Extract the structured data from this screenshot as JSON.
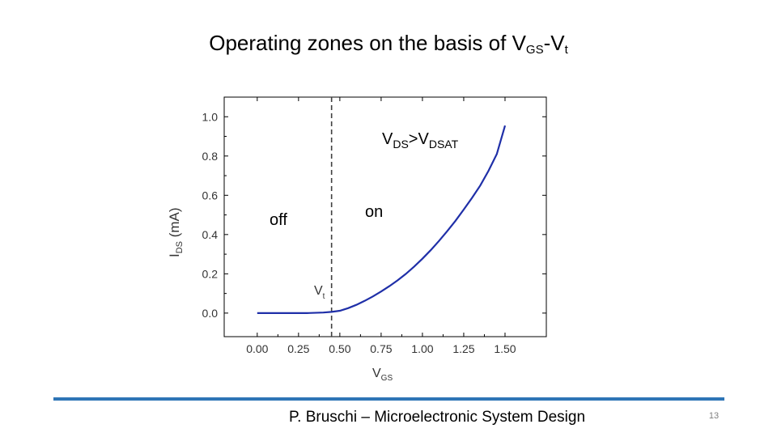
{
  "slide": {
    "title_main": "Operating zones on the basis of V",
    "title_sub": "GS",
    "title_rest": "-V",
    "title_sub2": "t",
    "footer": "P. Bruschi – Microelectronic System Design",
    "page_number": "13",
    "accent_color": "#2e75b6"
  },
  "chart_data": {
    "type": "line",
    "xlabel": "V",
    "xlabel_sub": "GS",
    "ylabel": "I",
    "ylabel_sub": "DS",
    "ylabel_unit": " (mA)",
    "xlim": [
      -0.2,
      1.75
    ],
    "ylim": [
      -0.12,
      1.1
    ],
    "xticks": [
      "0.00",
      "0.25",
      "0.50",
      "0.75",
      "1.00",
      "1.25",
      "1.50"
    ],
    "xtick_values": [
      0,
      0.25,
      0.5,
      0.75,
      1.0,
      1.25,
      1.5
    ],
    "yticks": [
      "0.0",
      "0.2",
      "0.4",
      "0.6",
      "0.8",
      "1.0"
    ],
    "ytick_values": [
      0,
      0.2,
      0.4,
      0.6,
      0.8,
      1.0
    ],
    "series": [
      {
        "color": "#1f2fa8",
        "x": [
          0.0,
          0.1,
          0.2,
          0.3,
          0.4,
          0.45,
          0.5,
          0.55,
          0.6,
          0.65,
          0.7,
          0.75,
          0.8,
          0.85,
          0.9,
          0.95,
          1.0,
          1.05,
          1.1,
          1.15,
          1.2,
          1.25,
          1.3,
          1.35,
          1.4,
          1.45,
          1.5
        ],
        "y": [
          0.0,
          0.0,
          0.0,
          0.0,
          0.003,
          0.006,
          0.012,
          0.025,
          0.042,
          0.062,
          0.085,
          0.11,
          0.137,
          0.167,
          0.2,
          0.237,
          0.277,
          0.32,
          0.367,
          0.417,
          0.47,
          0.527,
          0.587,
          0.65,
          0.725,
          0.81,
          0.955
        ]
      }
    ],
    "vline": {
      "x": 0.45,
      "style": "dashed"
    },
    "annotations": {
      "vdsat_main": "V",
      "vdsat_sub1": "DS",
      "vdsat_mid": ">V",
      "vdsat_sub2": "DSAT",
      "off_label": "off",
      "on_label": "on",
      "vt_main": "V",
      "vt_sub": "t"
    },
    "grid": false
  }
}
